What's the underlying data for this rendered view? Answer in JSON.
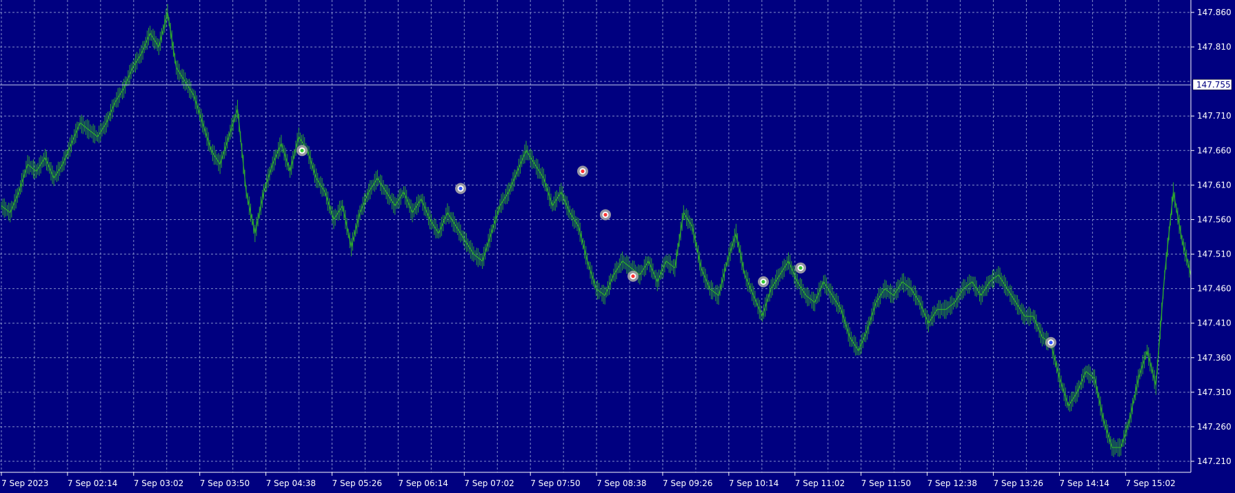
{
  "chart_data": {
    "type": "line",
    "x_tick_labels": [
      "7 Sep 2023",
      "7 Sep 02:14",
      "7 Sep 03:02",
      "7 Sep 03:50",
      "7 Sep 04:38",
      "7 Sep 05:26",
      "7 Sep 06:14",
      "7 Sep 07:02",
      "7 Sep 07:50",
      "7 Sep 08:38",
      "7 Sep 09:26",
      "7 Sep 10:14",
      "7 Sep 11:02",
      "7 Sep 11:50",
      "7 Sep 12:38",
      "7 Sep 13:26",
      "7 Sep 14:14",
      "7 Sep 15:02"
    ],
    "y_ticks": [
      147.86,
      147.81,
      147.71,
      147.66,
      147.61,
      147.56,
      147.51,
      147.46,
      147.41,
      147.36,
      147.31,
      147.26,
      147.21
    ],
    "y_tick_labels": [
      "147.860",
      "147.810",
      "147.710",
      "147.660",
      "147.610",
      "147.560",
      "147.510",
      "147.460",
      "147.410",
      "147.360",
      "147.310",
      "147.260",
      "147.210"
    ],
    "ylim": [
      147.195,
      147.875
    ],
    "current_price": 147.755,
    "current_price_label": "147.755",
    "grid": true,
    "series": [
      {
        "values": [
          147.58,
          147.57,
          147.6,
          147.64,
          147.63,
          147.65,
          147.62,
          147.64,
          147.67,
          147.7,
          147.69,
          147.68,
          147.7,
          147.73,
          147.75,
          147.78,
          147.8,
          147.83,
          147.81,
          147.86,
          147.78,
          147.76,
          147.74,
          147.7,
          147.66,
          147.64,
          147.68,
          147.72,
          147.6,
          147.54,
          147.6,
          147.64,
          147.67,
          147.63,
          147.68,
          147.66,
          147.62,
          147.6,
          147.56,
          147.58,
          147.52,
          147.57,
          147.6,
          147.62,
          147.6,
          147.58,
          147.6,
          147.57,
          147.59,
          147.56,
          147.54,
          147.57,
          147.55,
          147.53,
          147.51,
          147.5,
          147.54,
          147.58,
          147.6,
          147.63,
          147.66,
          147.64,
          147.62,
          147.58,
          147.6,
          147.57,
          147.55,
          147.5,
          147.46,
          147.45,
          147.48,
          147.5,
          147.49,
          147.48,
          147.5,
          147.47,
          147.5,
          147.49,
          147.57,
          147.55,
          147.49,
          147.46,
          147.45,
          147.5,
          147.54,
          147.48,
          147.45,
          147.42,
          147.46,
          147.48,
          147.5,
          147.47,
          147.45,
          147.44,
          147.47,
          147.45,
          147.43,
          147.39,
          147.37,
          147.4,
          147.44,
          147.46,
          147.45,
          147.47,
          147.46,
          147.44,
          147.41,
          147.43,
          147.43,
          147.44,
          147.46,
          147.47,
          147.45,
          147.47,
          147.48,
          147.46,
          147.44,
          147.42,
          147.42,
          147.39,
          147.38,
          147.33,
          147.29,
          147.31,
          147.34,
          147.33,
          147.27,
          147.23,
          147.23,
          147.27,
          147.33,
          147.37,
          147.32,
          147.48,
          147.6,
          147.53,
          147.48
        ]
      }
    ],
    "trade_markers": [
      {
        "value": 147.66,
        "color": "#33cc33"
      },
      {
        "value": 147.605,
        "color": "#3355ff"
      },
      {
        "value": 147.63,
        "color": "#ff3333"
      },
      {
        "value": 147.567,
        "color": "#ff3333"
      },
      {
        "value": 147.478,
        "color": "#ff3333"
      },
      {
        "value": 147.47,
        "color": "#33cc33"
      },
      {
        "value": 147.49,
        "color": "#33cc33"
      },
      {
        "value": 147.382,
        "color": "#3355ff"
      }
    ],
    "colors": {
      "background": "#000080",
      "grid": "#9aa7d8",
      "series": "#2ea82e",
      "axis_text": "#ffffff",
      "current_price_box": "#ffffff",
      "current_price_text": "#000080",
      "marker_ring": "#a6a6a6"
    }
  }
}
